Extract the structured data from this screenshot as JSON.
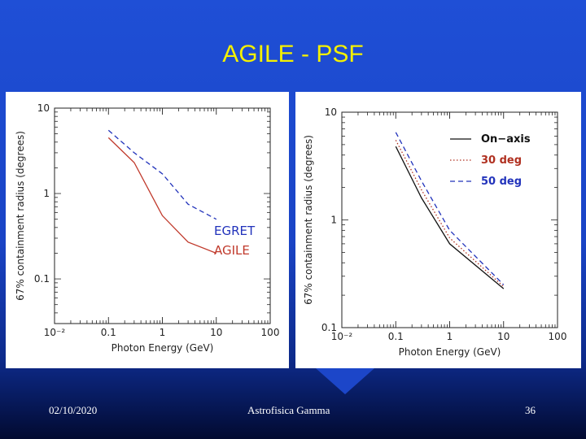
{
  "slide": {
    "title": "AGILE - PSF",
    "footer_date": "02/10/2020",
    "footer_center": "Astrofisica Gamma",
    "footer_page": "36"
  },
  "colors": {
    "background": "#1f4fd6",
    "title": "#f4f000",
    "egret": "#2233bb",
    "agile": "#c0392b",
    "on_axis": "#111111",
    "deg30": "#b03020",
    "deg50": "#2233bb"
  },
  "chart_data": [
    {
      "type": "line",
      "xscale": "log",
      "yscale": "log",
      "xlim": [
        0.01,
        100
      ],
      "ylim": [
        0.03,
        10
      ],
      "xlabel": "Photon Energy (GeV)",
      "ylabel": "67% containment radius (degrees)",
      "xticks": [
        "10⁻²",
        "0.1",
        "1",
        "10",
        "100"
      ],
      "xtick_values": [
        0.01,
        0.1,
        1,
        10,
        100
      ],
      "yticks": [
        "10",
        "1",
        "0.1"
      ],
      "ytick_values": [
        10,
        1,
        0.1
      ],
      "series": [
        {
          "name": "EGRET",
          "style": "dashed",
          "color": "#2233bb",
          "x": [
            0.1,
            0.3,
            1,
            3,
            10
          ],
          "y": [
            5.5,
            3.0,
            1.7,
            0.75,
            0.5
          ]
        },
        {
          "name": "AGILE",
          "style": "solid",
          "color": "#c0392b",
          "x": [
            0.1,
            0.3,
            1,
            3,
            10
          ],
          "y": [
            4.5,
            2.3,
            0.55,
            0.27,
            0.2
          ]
        }
      ]
    },
    {
      "type": "line",
      "xscale": "log",
      "yscale": "log",
      "xlim": [
        0.01,
        100
      ],
      "ylim": [
        0.1,
        10
      ],
      "xlabel": "Photon Energy (GeV)",
      "ylabel": "67% containment radius (degrees)",
      "xticks": [
        "10⁻²",
        "0.1",
        "1",
        "10",
        "100"
      ],
      "xtick_values": [
        0.01,
        0.1,
        1,
        10,
        100
      ],
      "yticks": [
        "10",
        "1",
        "0.1"
      ],
      "ytick_values": [
        10,
        1,
        0.1
      ],
      "series": [
        {
          "name": "On−axis",
          "style": "solid",
          "color": "#111111",
          "x": [
            0.1,
            0.3,
            1,
            10
          ],
          "y": [
            4.8,
            1.6,
            0.6,
            0.23
          ]
        },
        {
          "name": "30 deg",
          "style": "dotted",
          "color": "#b03020",
          "x": [
            0.1,
            0.3,
            1,
            10
          ],
          "y": [
            5.5,
            1.9,
            0.68,
            0.24
          ]
        },
        {
          "name": "50 deg",
          "style": "dashed",
          "color": "#2233bb",
          "x": [
            0.1,
            0.3,
            1,
            10
          ],
          "y": [
            6.5,
            2.3,
            0.8,
            0.25
          ]
        }
      ]
    }
  ]
}
